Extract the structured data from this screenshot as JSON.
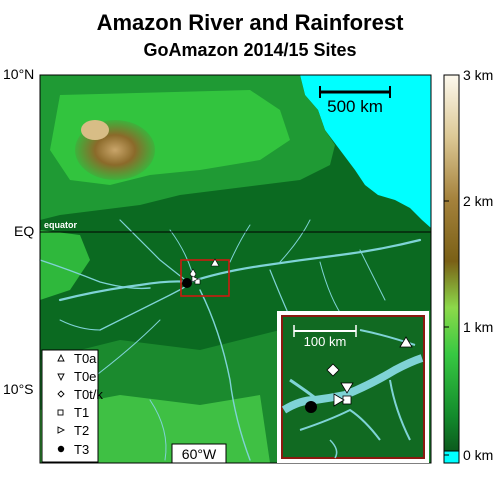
{
  "title": "Amazon River and Rainforest",
  "subtitle": "GoAmazon 2014/15 Sites",
  "latitude_labels": [
    "10°N",
    "EQ",
    "10°S"
  ],
  "longitude_label": "60°W",
  "equator_label": "equator",
  "scale_bar_label": "500 km",
  "inset_scale_label": "100 km",
  "colorbar": {
    "ticks": [
      "3 km",
      "2 km",
      "1 km",
      "0 km"
    ],
    "colors": [
      "#fdf8e6",
      "#a97c32",
      "#1ba53a",
      "#0d5a1e",
      "#00ffff"
    ]
  },
  "legend": [
    {
      "label": "T0a",
      "marker": "triangle-up-icon"
    },
    {
      "label": "T0e",
      "marker": "triangle-down-icon"
    },
    {
      "label": "T0t/k",
      "marker": "diamond-icon"
    },
    {
      "label": "T1",
      "marker": "square-icon"
    },
    {
      "label": "T2",
      "marker": "triangle-right-icon"
    },
    {
      "label": "T3",
      "marker": "filled-circle-icon"
    }
  ],
  "colors": {
    "ocean": "#00ffff",
    "lowland": "#0b6a21",
    "upland": "#2ec43c",
    "highland": "#8b6a2a",
    "river": "#7fd3d6",
    "inset_frame": "#ffffff",
    "study_box": "#cc1a10"
  }
}
